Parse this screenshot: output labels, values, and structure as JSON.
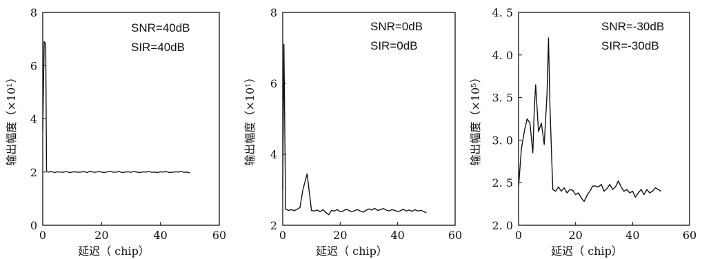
{
  "chart_data": [
    {
      "type": "line",
      "xlabel": "延迟（ chip）",
      "ylabel": "输出幅度（×10¹）",
      "annotations": [
        "SNR=40dB",
        "SIR=40dB"
      ],
      "xlim": [
        0,
        60
      ],
      "ylim": [
        0,
        8
      ],
      "xticks": [
        "0",
        "20",
        "40",
        "60"
      ],
      "yticks": [
        "0",
        "2",
        "4",
        "6",
        "8"
      ],
      "series": [
        {
          "x": [
            0,
            0.5,
            1,
            1.3,
            2,
            3,
            4,
            5,
            6,
            7,
            8,
            9,
            10,
            11,
            12,
            13,
            14,
            15,
            16,
            17,
            18,
            19,
            20,
            21,
            22,
            23,
            24,
            25,
            26,
            27,
            28,
            29,
            30,
            31,
            32,
            33,
            34,
            35,
            36,
            37,
            38,
            39,
            40,
            41,
            42,
            43,
            44,
            45,
            46,
            47,
            48,
            49,
            50
          ],
          "y": [
            3.6,
            6.9,
            6.8,
            2.02,
            2.0,
            2.02,
            1.98,
            2.01,
            2.0,
            1.99,
            2.02,
            1.98,
            2.0,
            2.01,
            1.99,
            2.0,
            2.02,
            1.98,
            2.03,
            2.0,
            1.99,
            2.02,
            2.0,
            1.98,
            2.01,
            2.03,
            1.99,
            2.0,
            2.02,
            1.98,
            2.0,
            2.01,
            1.99,
            2.02,
            2.0,
            1.98,
            2.01,
            2.0,
            2.02,
            1.99,
            2.0,
            1.98,
            2.01,
            2.0,
            2.02,
            1.98,
            1.99,
            2.01,
            2.0,
            2.02,
            1.99,
            2.0,
            1.97
          ]
        }
      ]
    },
    {
      "type": "line",
      "xlabel": "延迟（ chip）",
      "ylabel": "输出幅度（×10¹）",
      "annotations": [
        "SNR=0dB",
        "SIR=0dB"
      ],
      "xlim": [
        0,
        60
      ],
      "ylim": [
        2,
        8
      ],
      "xticks": [
        "0",
        "20",
        "40",
        "60"
      ],
      "yticks": [
        "2",
        "4",
        "6",
        "8"
      ],
      "series": [
        {
          "x": [
            0,
            0.4,
            1,
            2,
            3,
            4,
            5,
            6,
            7,
            8,
            8.5,
            9,
            10,
            11,
            12,
            13,
            14,
            15,
            16,
            17,
            18,
            19,
            20,
            21,
            22,
            23,
            24,
            25,
            26,
            27,
            28,
            29,
            30,
            31,
            32,
            33,
            34,
            35,
            36,
            37,
            38,
            39,
            40,
            41,
            42,
            43,
            44,
            45,
            46,
            47,
            48,
            49,
            50
          ],
          "y": [
            3.0,
            7.1,
            2.45,
            2.42,
            2.44,
            2.41,
            2.45,
            2.5,
            3.0,
            3.3,
            3.45,
            3.1,
            2.42,
            2.4,
            2.43,
            2.38,
            2.44,
            2.36,
            2.3,
            2.42,
            2.4,
            2.44,
            2.38,
            2.4,
            2.45,
            2.42,
            2.38,
            2.41,
            2.44,
            2.4,
            2.37,
            2.42,
            2.46,
            2.43,
            2.48,
            2.42,
            2.44,
            2.47,
            2.43,
            2.4,
            2.44,
            2.42,
            2.38,
            2.41,
            2.45,
            2.4,
            2.43,
            2.39,
            2.44,
            2.4,
            2.42,
            2.39,
            2.35
          ]
        }
      ]
    },
    {
      "type": "line",
      "xlabel": "延迟（ chip）",
      "ylabel": "输出幅度（×10⁵）",
      "annotations": [
        "SNR=-30dB",
        "SIR=-30dB"
      ],
      "xlim": [
        0,
        60
      ],
      "ylim": [
        2.0,
        4.5
      ],
      "xticks": [
        "0",
        "20",
        "40",
        "60"
      ],
      "yticks": [
        "2. 0",
        "2. 5",
        "3. 0",
        "3. 5",
        "4. 0",
        "4. 5"
      ],
      "series": [
        {
          "x": [
            0,
            1,
            2,
            3,
            4,
            5,
            5.5,
            6,
            7,
            8,
            9,
            10,
            10.5,
            11,
            12,
            13,
            14,
            15,
            16,
            17,
            18,
            19,
            20,
            21,
            22,
            23,
            24,
            25,
            26,
            27,
            28,
            29,
            30,
            31,
            32,
            33,
            34,
            35,
            36,
            37,
            38,
            39,
            40,
            41,
            42,
            43,
            44,
            45,
            46,
            47,
            48,
            49,
            50
          ],
          "y": [
            2.45,
            2.9,
            3.1,
            3.25,
            3.2,
            2.85,
            3.35,
            3.65,
            3.1,
            3.2,
            2.95,
            3.55,
            4.2,
            3.4,
            2.42,
            2.4,
            2.45,
            2.4,
            2.44,
            2.38,
            2.42,
            2.41,
            2.36,
            2.38,
            2.32,
            2.28,
            2.35,
            2.4,
            2.46,
            2.46,
            2.45,
            2.48,
            2.4,
            2.43,
            2.48,
            2.42,
            2.45,
            2.52,
            2.45,
            2.4,
            2.42,
            2.38,
            2.4,
            2.33,
            2.38,
            2.42,
            2.36,
            2.42,
            2.38,
            2.4,
            2.44,
            2.42,
            2.4
          ]
        }
      ]
    }
  ]
}
